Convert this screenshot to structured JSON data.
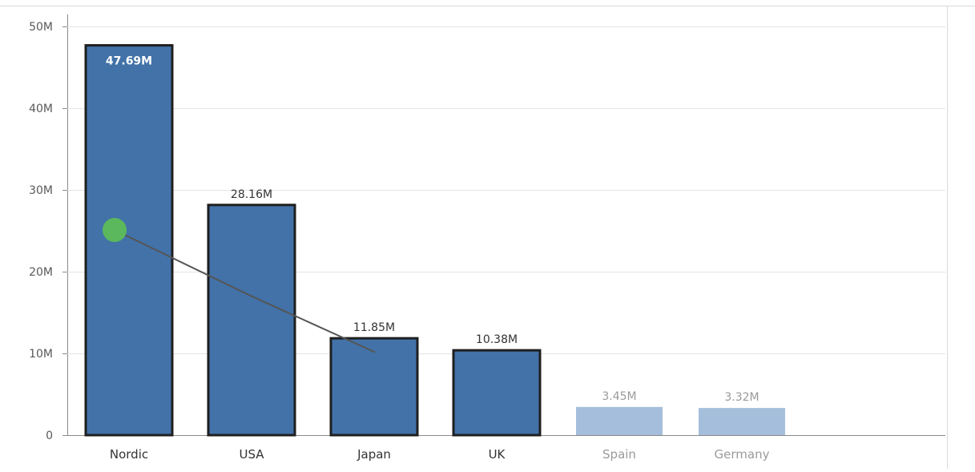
{
  "chart_data": {
    "type": "bar",
    "categories": [
      "Nordic",
      "USA",
      "Japan",
      "UK",
      "Spain",
      "Germany"
    ],
    "values": [
      47.69,
      28.16,
      11.85,
      10.38,
      3.45,
      3.32
    ],
    "data_labels": [
      "47.69M",
      "28.16M",
      "11.85M",
      "10.38M",
      "3.45M",
      "3.32M"
    ],
    "selected": [
      true,
      true,
      true,
      true,
      false,
      false
    ],
    "line_series": {
      "points": [
        {
          "category": "Nordic",
          "value": 25.1
        },
        {
          "category": "USA",
          "value": 17.0
        },
        {
          "category": "Japan",
          "value": 10.2
        }
      ],
      "color": "#555555",
      "marker_color": "#5cb85c"
    },
    "y_ticks": [
      {
        "value": 0,
        "label": "0"
      },
      {
        "value": 10,
        "label": "10M"
      },
      {
        "value": 20,
        "label": "20M"
      },
      {
        "value": 30,
        "label": "30M"
      },
      {
        "value": 40,
        "label": "40M"
      },
      {
        "value": 50,
        "label": "50M"
      }
    ],
    "ylim": [
      0,
      50
    ],
    "grid": true,
    "title": "",
    "xlabel": "",
    "ylabel": "",
    "colors": {
      "bar": "#4272a8",
      "bar_border": "#1f1f1f",
      "bar_dimmed": "#a5bedb",
      "label": "#333333",
      "label_dimmed": "#9a9a9a",
      "inside_label": "#ffffff",
      "grid": "#e4e4e4",
      "axis": "#8a8a8a"
    }
  }
}
